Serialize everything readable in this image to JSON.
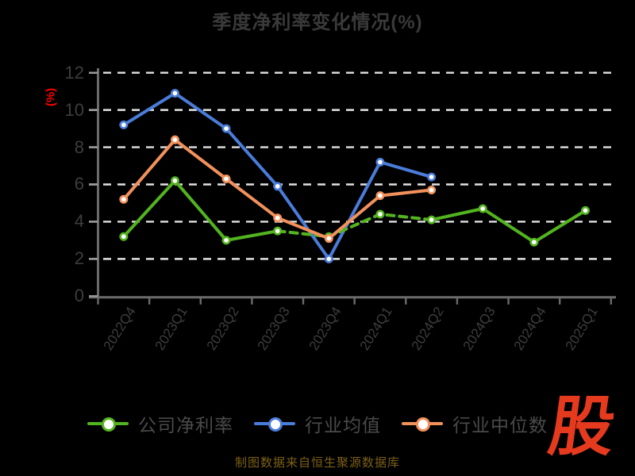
{
  "title": "季度净利率变化情况(%)",
  "y_axis_unit_label": "(%)",
  "source_note": "制图数据来自恒生聚源数据库",
  "logo_text": "股",
  "colors": {
    "background": "#000000",
    "title_text": "#3a3a3a",
    "axis_label_text": "#3e3e3e",
    "legend_text": "#4a4a4a",
    "gridline": "#e2e2e2",
    "axis_line": "#6b6b6b",
    "y_unit_label": "#ff0000",
    "source_text": "#7d6017",
    "logo_red": "#e63a1f",
    "marker_fill": "#ffffff"
  },
  "chart_data": {
    "type": "line",
    "title": "季度净利率变化情况(%)",
    "xlabel": "",
    "ylabel": "(%)",
    "categories": [
      "2022Q4",
      "2023Q1",
      "2023Q2",
      "2023Q3",
      "2023Q4",
      "2024Q1",
      "2024Q2",
      "2024Q3",
      "2024Q4",
      "2025Q1"
    ],
    "series": [
      {
        "name": "公司净利率",
        "color": "#53b41f",
        "marker": "white-circle",
        "dashed_segment": [
          3,
          6
        ],
        "values": [
          3.2,
          6.2,
          3.0,
          3.5,
          3.2,
          4.4,
          4.1,
          4.7,
          2.9,
          4.6
        ]
      },
      {
        "name": "行业均值",
        "color": "#4a7cd9",
        "marker": "white-circle",
        "dashed_segment": null,
        "values": [
          9.2,
          10.9,
          9.0,
          5.9,
          2.0,
          7.2,
          6.4,
          null,
          null,
          null
        ]
      },
      {
        "name": "行业中位数",
        "color": "#f2915c",
        "marker": "white-circle",
        "dashed_segment": null,
        "values": [
          5.2,
          8.4,
          6.3,
          4.2,
          3.1,
          5.4,
          5.7,
          null,
          null,
          null
        ]
      }
    ],
    "ylim": [
      0,
      12
    ],
    "y_ticks": [
      0,
      2,
      4,
      6,
      8,
      10,
      12
    ],
    "grid": "horizontal-dashed",
    "legend_position": "bottom"
  }
}
